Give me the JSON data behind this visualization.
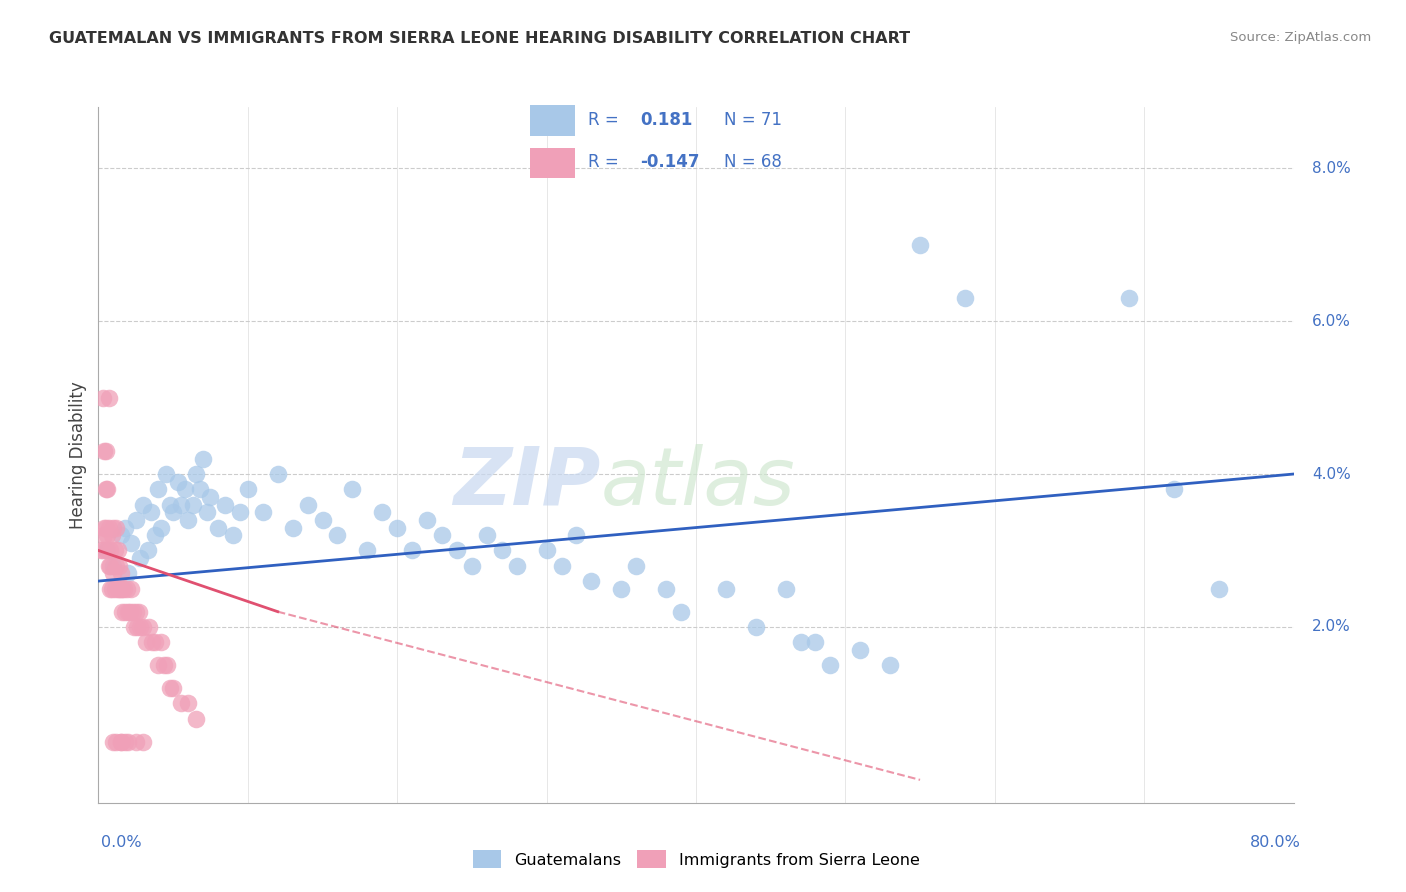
{
  "title": "GUATEMALAN VS IMMIGRANTS FROM SIERRA LEONE HEARING DISABILITY CORRELATION CHART",
  "source": "Source: ZipAtlas.com",
  "ylabel": "Hearing Disability",
  "xlim": [
    0.0,
    0.8
  ],
  "ylim": [
    -0.003,
    0.088
  ],
  "r_blue": 0.181,
  "n_blue": 71,
  "r_pink": -0.147,
  "n_pink": 68,
  "blue_color": "#a8c8e8",
  "pink_color": "#f0a0b8",
  "blue_line_color": "#3060c0",
  "pink_line_color": "#e05070",
  "watermark_zip": "ZIP",
  "watermark_atlas": "atlas",
  "blue_scatter_x": [
    0.005,
    0.01,
    0.015,
    0.018,
    0.02,
    0.022,
    0.025,
    0.028,
    0.03,
    0.033,
    0.035,
    0.038,
    0.04,
    0.042,
    0.045,
    0.048,
    0.05,
    0.053,
    0.055,
    0.058,
    0.06,
    0.063,
    0.065,
    0.068,
    0.07,
    0.073,
    0.075,
    0.08,
    0.085,
    0.09,
    0.095,
    0.1,
    0.11,
    0.12,
    0.13,
    0.14,
    0.15,
    0.16,
    0.17,
    0.18,
    0.19,
    0.2,
    0.21,
    0.22,
    0.23,
    0.24,
    0.25,
    0.26,
    0.27,
    0.28,
    0.3,
    0.31,
    0.32,
    0.33,
    0.35,
    0.36,
    0.38,
    0.39,
    0.42,
    0.44,
    0.46,
    0.47,
    0.49,
    0.51,
    0.53,
    0.55,
    0.58,
    0.69,
    0.72,
    0.75,
    0.48
  ],
  "blue_scatter_y": [
    0.03,
    0.028,
    0.032,
    0.033,
    0.027,
    0.031,
    0.034,
    0.029,
    0.036,
    0.03,
    0.035,
    0.032,
    0.038,
    0.033,
    0.04,
    0.036,
    0.035,
    0.039,
    0.036,
    0.038,
    0.034,
    0.036,
    0.04,
    0.038,
    0.042,
    0.035,
    0.037,
    0.033,
    0.036,
    0.032,
    0.035,
    0.038,
    0.035,
    0.04,
    0.033,
    0.036,
    0.034,
    0.032,
    0.038,
    0.03,
    0.035,
    0.033,
    0.03,
    0.034,
    0.032,
    0.03,
    0.028,
    0.032,
    0.03,
    0.028,
    0.03,
    0.028,
    0.032,
    0.026,
    0.025,
    0.028,
    0.025,
    0.022,
    0.025,
    0.02,
    0.025,
    0.018,
    0.015,
    0.017,
    0.015,
    0.07,
    0.063,
    0.063,
    0.038,
    0.025,
    0.018
  ],
  "pink_scatter_x": [
    0.002,
    0.003,
    0.004,
    0.004,
    0.005,
    0.005,
    0.006,
    0.006,
    0.007,
    0.007,
    0.008,
    0.008,
    0.009,
    0.009,
    0.01,
    0.01,
    0.011,
    0.011,
    0.012,
    0.012,
    0.013,
    0.013,
    0.014,
    0.014,
    0.015,
    0.015,
    0.016,
    0.016,
    0.017,
    0.018,
    0.019,
    0.02,
    0.021,
    0.022,
    0.023,
    0.024,
    0.025,
    0.026,
    0.027,
    0.028,
    0.03,
    0.032,
    0.034,
    0.036,
    0.038,
    0.04,
    0.042,
    0.044,
    0.046,
    0.048,
    0.05,
    0.055,
    0.06,
    0.065,
    0.003,
    0.004,
    0.005,
    0.006,
    0.007,
    0.008,
    0.01,
    0.012,
    0.015,
    0.018,
    0.02,
    0.025,
    0.03,
    0.015
  ],
  "pink_scatter_y": [
    0.03,
    0.03,
    0.033,
    0.032,
    0.033,
    0.043,
    0.032,
    0.03,
    0.028,
    0.033,
    0.03,
    0.028,
    0.032,
    0.025,
    0.033,
    0.027,
    0.03,
    0.025,
    0.033,
    0.028,
    0.03,
    0.025,
    0.028,
    0.025,
    0.027,
    0.025,
    0.025,
    0.022,
    0.025,
    0.022,
    0.025,
    0.022,
    0.022,
    0.025,
    0.022,
    0.02,
    0.022,
    0.02,
    0.022,
    0.02,
    0.02,
    0.018,
    0.02,
    0.018,
    0.018,
    0.015,
    0.018,
    0.015,
    0.015,
    0.012,
    0.012,
    0.01,
    0.01,
    0.008,
    0.05,
    0.043,
    0.038,
    0.038,
    0.05,
    0.025,
    0.005,
    0.005,
    0.005,
    0.005,
    0.005,
    0.005,
    0.005,
    0.005
  ]
}
